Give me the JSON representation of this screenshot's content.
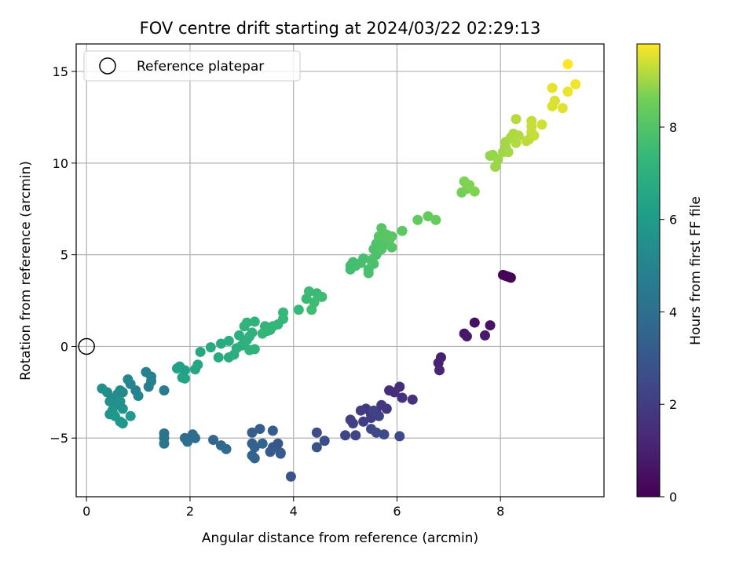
{
  "chart_data": {
    "type": "scatter",
    "title": "FOV centre drift starting at 2024/03/22 02:29:13",
    "xlabel": "Angular distance from reference (arcmin)",
    "ylabel": "Rotation from reference (arcmin)",
    "xlim": [
      -0.2,
      10.0
    ],
    "ylim": [
      -8.2,
      16.5
    ],
    "xticks": [
      0,
      2,
      4,
      6,
      8
    ],
    "yticks": [
      -5,
      0,
      5,
      10,
      15
    ],
    "xtick_labels": [
      "0",
      "2",
      "4",
      "6",
      "8"
    ],
    "ytick_labels": [
      "−5",
      "0",
      "5",
      "10",
      "15"
    ],
    "grid": true,
    "legend": {
      "label": "Reference platepar",
      "position": "top-left"
    },
    "reference_point": {
      "x": 0,
      "y": 0
    },
    "colorbar": {
      "label": "Hours from first FF file",
      "range": [
        0,
        9.8
      ],
      "ticks": [
        0,
        2,
        4,
        6,
        8
      ],
      "tick_labels": [
        "0",
        "2",
        "4",
        "6",
        "8"
      ],
      "colormap": "viridis"
    },
    "points": [
      [
        8.05,
        3.9,
        0.05
      ],
      [
        8.1,
        3.85,
        0.08
      ],
      [
        8.15,
        3.8,
        0.1
      ],
      [
        8.2,
        3.75,
        0.12
      ],
      [
        7.5,
        1.3,
        0.5
      ],
      [
        7.8,
        1.15,
        0.6
      ],
      [
        7.3,
        0.7,
        0.7
      ],
      [
        7.35,
        0.55,
        0.75
      ],
      [
        7.7,
        0.6,
        0.8
      ],
      [
        6.85,
        -0.6,
        1.0
      ],
      [
        6.8,
        -0.9,
        1.05
      ],
      [
        6.82,
        -1.3,
        1.1
      ],
      [
        6.05,
        -2.2,
        1.4
      ],
      [
        5.95,
        -2.5,
        1.5
      ],
      [
        5.85,
        -2.4,
        1.45
      ],
      [
        6.1,
        -2.8,
        1.55
      ],
      [
        6.3,
        -2.9,
        1.6
      ],
      [
        5.8,
        -3.4,
        1.7
      ],
      [
        5.7,
        -3.2,
        1.75
      ],
      [
        5.6,
        -3.6,
        1.8
      ],
      [
        5.5,
        -3.7,
        1.85
      ],
      [
        5.4,
        -3.4,
        1.9
      ],
      [
        5.3,
        -3.5,
        1.95
      ],
      [
        5.5,
        -3.9,
        2.0
      ],
      [
        5.35,
        -4.1,
        2.05
      ],
      [
        5.1,
        -4.0,
        2.1
      ],
      [
        5.15,
        -4.2,
        2.15
      ],
      [
        5.65,
        -3.8,
        2.2
      ],
      [
        5.55,
        -3.5,
        2.25
      ],
      [
        5.2,
        -4.85,
        2.3
      ],
      [
        5.0,
        -4.85,
        2.35
      ],
      [
        5.5,
        -4.5,
        2.4
      ],
      [
        5.6,
        -4.7,
        2.45
      ],
      [
        5.75,
        -4.8,
        2.5
      ],
      [
        6.05,
        -4.9,
        2.55
      ],
      [
        4.45,
        -4.7,
        2.6
      ],
      [
        4.6,
        -5.15,
        2.7
      ],
      [
        4.45,
        -5.5,
        2.75
      ],
      [
        3.95,
        -7.1,
        2.85
      ],
      [
        3.7,
        -5.3,
        2.95
      ],
      [
        3.75,
        -5.8,
        3.0
      ],
      [
        3.6,
        -5.5,
        3.05
      ],
      [
        3.55,
        -5.75,
        3.1
      ],
      [
        3.75,
        -5.85,
        3.15
      ],
      [
        3.6,
        -4.6,
        3.2
      ],
      [
        3.35,
        -4.5,
        3.25
      ],
      [
        3.2,
        -4.7,
        3.3
      ],
      [
        3.2,
        -5.3,
        3.35
      ],
      [
        3.25,
        -5.5,
        3.4
      ],
      [
        3.2,
        -5.95,
        3.45
      ],
      [
        3.25,
        -6.1,
        3.5
      ],
      [
        3.4,
        -5.3,
        3.55
      ],
      [
        2.45,
        -5.1,
        3.65
      ],
      [
        2.6,
        -5.4,
        3.7
      ],
      [
        2.7,
        -5.6,
        3.75
      ],
      [
        2.05,
        -4.8,
        3.85
      ],
      [
        2.1,
        -5.0,
        3.9
      ],
      [
        1.9,
        -5.0,
        3.95
      ],
      [
        1.95,
        -5.2,
        4.0
      ],
      [
        1.5,
        -4.75,
        4.2
      ],
      [
        1.5,
        -5.0,
        4.25
      ],
      [
        1.5,
        -5.3,
        4.3
      ],
      [
        1.5,
        -2.4,
        4.6
      ],
      [
        1.2,
        -2.2,
        4.7
      ],
      [
        1.25,
        -1.9,
        4.75
      ],
      [
        1.15,
        -1.4,
        4.8
      ],
      [
        1.25,
        -1.65,
        4.85
      ],
      [
        0.95,
        -2.4,
        4.95
      ],
      [
        1.0,
        -2.7,
        5.0
      ],
      [
        0.85,
        -2.05,
        5.05
      ],
      [
        0.8,
        -1.8,
        5.1
      ],
      [
        0.7,
        -2.5,
        5.2
      ],
      [
        0.65,
        -2.4,
        5.25
      ],
      [
        0.6,
        -2.6,
        5.3
      ],
      [
        0.55,
        -2.8,
        5.35
      ],
      [
        0.4,
        -2.5,
        5.4
      ],
      [
        0.3,
        -2.3,
        5.45
      ],
      [
        0.45,
        -3.0,
        5.5
      ],
      [
        0.55,
        -3.2,
        5.55
      ],
      [
        0.65,
        -3.0,
        5.6
      ],
      [
        0.7,
        -3.4,
        5.65
      ],
      [
        0.5,
        -3.5,
        5.7
      ],
      [
        0.45,
        -3.7,
        5.75
      ],
      [
        0.55,
        -3.8,
        5.8
      ],
      [
        0.65,
        -4.1,
        5.85
      ],
      [
        0.7,
        -4.2,
        5.9
      ],
      [
        0.85,
        -3.8,
        5.95
      ],
      [
        1.8,
        -1.1,
        6.2
      ],
      [
        1.9,
        -1.3,
        6.25
      ],
      [
        1.75,
        -1.2,
        6.3
      ],
      [
        1.85,
        -1.7,
        6.35
      ],
      [
        1.9,
        -1.75,
        6.4
      ],
      [
        2.15,
        -1.0,
        6.45
      ],
      [
        2.1,
        -1.25,
        6.5
      ],
      [
        2.2,
        -0.3,
        6.55
      ],
      [
        2.4,
        -0.05,
        6.6
      ],
      [
        2.55,
        -0.6,
        6.65
      ],
      [
        2.6,
        0.15,
        6.7
      ],
      [
        2.75,
        0.3,
        6.75
      ],
      [
        2.75,
        -0.6,
        6.8
      ],
      [
        2.85,
        -0.45,
        6.85
      ],
      [
        2.9,
        -0.1,
        6.9
      ],
      [
        3.0,
        0.05,
        6.9
      ],
      [
        3.05,
        0.2,
        6.95
      ],
      [
        2.95,
        0.6,
        6.95
      ],
      [
        3.1,
        0.35,
        7.0
      ],
      [
        3.15,
        0.55,
        7.0
      ],
      [
        3.2,
        0.75,
        7.05
      ],
      [
        3.15,
        -0.2,
        7.05
      ],
      [
        3.25,
        -0.15,
        7.1
      ],
      [
        3.05,
        1.1,
        7.1
      ],
      [
        3.1,
        1.3,
        7.15
      ],
      [
        3.25,
        1.35,
        7.15
      ],
      [
        3.4,
        0.7,
        7.2
      ],
      [
        3.5,
        0.85,
        7.2
      ],
      [
        3.45,
        1.1,
        7.25
      ],
      [
        3.55,
        0.9,
        7.25
      ],
      [
        3.6,
        1.1,
        7.3
      ],
      [
        3.7,
        1.2,
        7.3
      ],
      [
        3.8,
        1.5,
        7.35
      ],
      [
        3.8,
        1.85,
        7.35
      ],
      [
        4.1,
        2.0,
        7.4
      ],
      [
        4.25,
        2.6,
        7.45
      ],
      [
        4.3,
        3.0,
        7.5
      ],
      [
        4.45,
        2.9,
        7.5
      ],
      [
        4.55,
        2.7,
        7.55
      ],
      [
        4.4,
        2.4,
        7.55
      ],
      [
        4.35,
        2.0,
        7.6
      ],
      [
        5.1,
        4.4,
        7.6
      ],
      [
        5.1,
        4.2,
        7.65
      ],
      [
        5.15,
        4.6,
        7.65
      ],
      [
        5.2,
        4.4,
        7.7
      ],
      [
        5.3,
        4.55,
        7.7
      ],
      [
        5.35,
        4.8,
        7.75
      ],
      [
        5.45,
        4.2,
        7.75
      ],
      [
        5.45,
        4.0,
        7.8
      ],
      [
        5.5,
        4.7,
        7.8
      ],
      [
        5.55,
        4.5,
        7.85
      ],
      [
        5.6,
        5.0,
        7.85
      ],
      [
        5.55,
        5.3,
        7.9
      ],
      [
        5.6,
        5.6,
        7.9
      ],
      [
        5.65,
        5.8,
        7.95
      ],
      [
        5.75,
        5.9,
        7.95
      ],
      [
        5.7,
        5.3,
        8.0
      ],
      [
        5.8,
        5.6,
        8.0
      ],
      [
        5.85,
        5.8,
        8.05
      ],
      [
        5.9,
        5.4,
        8.05
      ],
      [
        5.65,
        6.0,
        8.1
      ],
      [
        5.7,
        6.45,
        8.1
      ],
      [
        5.8,
        6.1,
        8.15
      ],
      [
        5.9,
        6.0,
        8.15
      ],
      [
        6.1,
        6.3,
        8.2
      ],
      [
        6.4,
        6.9,
        8.3
      ],
      [
        6.6,
        7.1,
        8.35
      ],
      [
        6.75,
        6.9,
        8.4
      ],
      [
        7.25,
        8.4,
        8.6
      ],
      [
        7.35,
        8.6,
        8.65
      ],
      [
        7.3,
        9.0,
        8.7
      ],
      [
        7.4,
        8.8,
        8.75
      ],
      [
        7.5,
        8.45,
        8.75
      ],
      [
        7.8,
        10.4,
        8.9
      ],
      [
        7.85,
        10.45,
        8.9
      ],
      [
        7.9,
        9.8,
        8.95
      ],
      [
        7.95,
        10.2,
        8.95
      ],
      [
        8.05,
        10.6,
        9.0
      ],
      [
        8.1,
        10.85,
        9.0
      ],
      [
        8.15,
        10.6,
        9.05
      ],
      [
        8.1,
        11.15,
        9.05
      ],
      [
        8.2,
        11.4,
        9.1
      ],
      [
        8.25,
        11.6,
        9.1
      ],
      [
        8.3,
        11.1,
        9.15
      ],
      [
        8.35,
        11.5,
        9.15
      ],
      [
        8.3,
        12.4,
        9.2
      ],
      [
        8.5,
        11.2,
        9.25
      ],
      [
        8.55,
        11.3,
        9.25
      ],
      [
        8.6,
        11.7,
        9.3
      ],
      [
        8.6,
        12.3,
        9.3
      ],
      [
        8.65,
        11.5,
        9.35
      ],
      [
        8.6,
        12.0,
        9.35
      ],
      [
        8.8,
        12.1,
        9.4
      ],
      [
        9.0,
        13.1,
        9.5
      ],
      [
        9.05,
        13.4,
        9.5
      ],
      [
        9.2,
        13.0,
        9.55
      ],
      [
        9.0,
        14.1,
        9.6
      ],
      [
        9.3,
        13.9,
        9.65
      ],
      [
        9.45,
        14.3,
        9.7
      ],
      [
        9.3,
        15.4,
        9.8
      ]
    ]
  }
}
